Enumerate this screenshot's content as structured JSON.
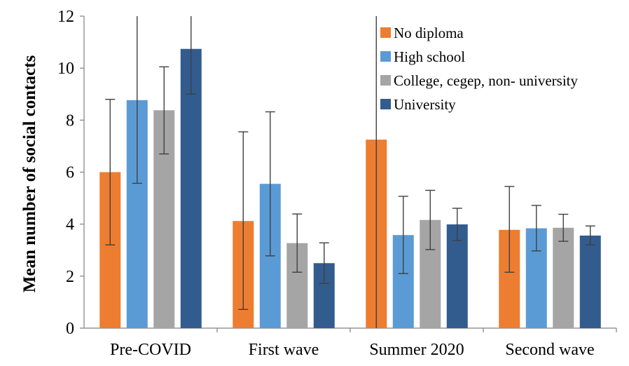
{
  "chart_data": {
    "type": "bar",
    "title": "",
    "xlabel": "",
    "ylabel": "Mean number of social contacts",
    "ylim": [
      0,
      12
    ],
    "yticks": [
      0,
      2,
      4,
      6,
      8,
      10,
      12
    ],
    "grid": false,
    "legend_position": "top-right",
    "categories": [
      "Pre-COVID",
      "First wave",
      "Summer 2020",
      "Second wave"
    ],
    "series": [
      {
        "name": "No diploma",
        "color": "#ED7D31",
        "values": [
          6.0,
          4.12,
          7.25,
          3.78
        ],
        "error_low": [
          3.2,
          0.72,
          0.0,
          2.15
        ],
        "error_high": [
          8.8,
          7.55,
          12.0,
          5.45
        ]
      },
      {
        "name": "High school",
        "color": "#5B9BD5",
        "values": [
          8.77,
          5.55,
          3.58,
          3.84
        ],
        "error_low": [
          5.57,
          2.78,
          2.1,
          2.97
        ],
        "error_high": [
          12.0,
          8.32,
          5.07,
          4.72
        ]
      },
      {
        "name": "College, cegep, non- university",
        "color": "#A5A5A5",
        "values": [
          8.38,
          3.27,
          4.16,
          3.86
        ],
        "error_low": [
          6.7,
          2.15,
          3.02,
          3.34
        ],
        "error_high": [
          10.05,
          4.39,
          5.3,
          4.38
        ]
      },
      {
        "name": "University",
        "color": "#335C8E",
        "values": [
          10.74,
          2.5,
          3.99,
          3.56
        ],
        "error_low": [
          9.0,
          1.72,
          3.37,
          3.2
        ],
        "error_high": [
          12.0,
          3.28,
          4.61,
          3.93
        ]
      }
    ]
  }
}
